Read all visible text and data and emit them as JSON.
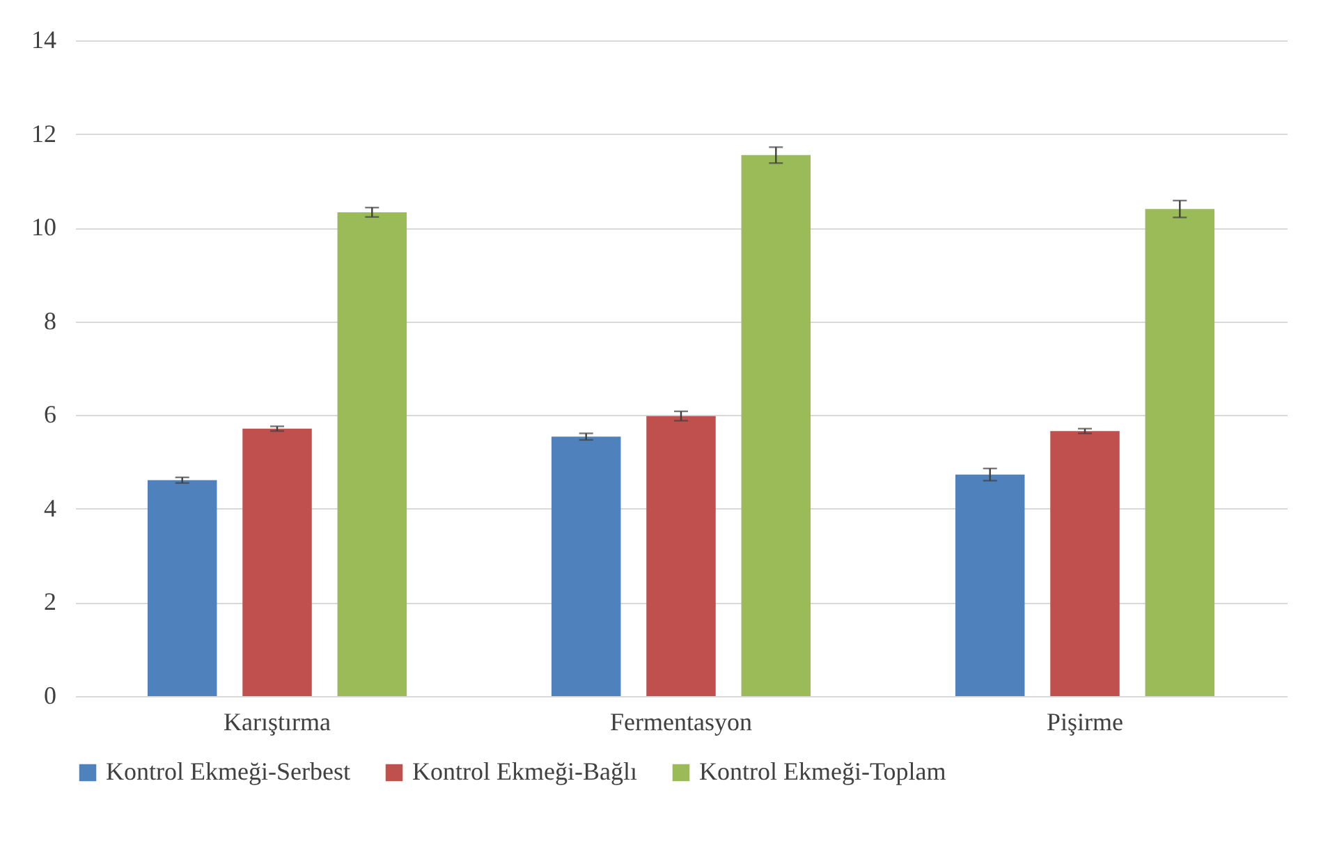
{
  "chart_data": {
    "type": "bar",
    "categories": [
      "Karıştırma",
      "Fermentasyon",
      "Pişirme"
    ],
    "series": [
      {
        "name": "Kontrol Ekmeği-Serbest",
        "color": "#4f81bd",
        "values": [
          4.61,
          5.54,
          4.73
        ],
        "errors": [
          0.06,
          0.07,
          0.13
        ]
      },
      {
        "name": "Kontrol Ekmeği-Bağlı",
        "color": "#c0504d",
        "values": [
          5.71,
          5.98,
          5.66
        ],
        "errors": [
          0.05,
          0.1,
          0.05
        ]
      },
      {
        "name": "Kontrol Ekmeği-Toplam",
        "color": "#9bbb59",
        "values": [
          10.33,
          11.55,
          10.4
        ],
        "errors": [
          0.1,
          0.17,
          0.18
        ]
      }
    ],
    "ylim": [
      0,
      14
    ],
    "yticks": [
      0,
      2,
      4,
      6,
      8,
      10,
      12,
      14
    ],
    "grid": "y",
    "legend": "bottom"
  }
}
